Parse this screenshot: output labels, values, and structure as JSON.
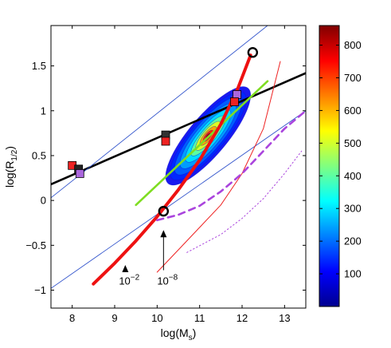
{
  "chart_data": {
    "type": "scatter",
    "xlabel": "log(M",
    "xlabel_sub": "s",
    "xlabel_close": ")",
    "ylabel": "log(R",
    "ylabel_sub": "1/2",
    "ylabel_close": ")",
    "xlim": [
      7.5,
      13.5
    ],
    "ylim": [
      -1.2,
      1.95
    ],
    "xticks": [
      "8",
      "9",
      "10",
      "11",
      "12",
      "13"
    ],
    "yticks": [
      "-1",
      "-0.5",
      "0",
      "0.5",
      "1",
      "1.5"
    ],
    "colorbar": {
      "range": [
        0,
        860
      ],
      "ticks": [
        "100",
        "200",
        "300",
        "400",
        "500",
        "600",
        "700",
        "800"
      ],
      "colors": [
        "#00008f",
        "#0000ff",
        "#0080ff",
        "#00ffff",
        "#80ff80",
        "#ffff00",
        "#ff8000",
        "#ff0000",
        "#800000"
      ]
    },
    "density_contour_center": [
      11.2,
      0.72
    ],
    "series": [
      {
        "kind": "line",
        "color": "#000000",
        "x": [
          7.5,
          13.5
        ],
        "y": [
          0.18,
          1.42
        ]
      },
      {
        "kind": "line",
        "color": "#3355cc",
        "x": [
          7.5,
          12.6
        ],
        "y": [
          0.03,
          1.95
        ]
      },
      {
        "kind": "line",
        "color": "#3355cc",
        "x": [
          7.5,
          13.5
        ],
        "y": [
          -0.98,
          1.0
        ]
      },
      {
        "kind": "line",
        "color": "#7fdd22",
        "x": [
          9.5,
          12.6
        ],
        "y": [
          -0.05,
          1.33
        ]
      },
      {
        "kind": "line",
        "color": "#ee1111",
        "x": [
          8.5,
          9.0,
          9.5,
          10.0,
          10.5,
          11.0,
          11.5,
          11.9,
          12.2
        ],
        "y": [
          -0.93,
          -0.7,
          -0.45,
          -0.18,
          0.12,
          0.45,
          0.85,
          1.25,
          1.62
        ]
      },
      {
        "kind": "line",
        "color": "#ee2222",
        "x": [
          10.0,
          10.5,
          11.0,
          11.5,
          12.0,
          12.5,
          12.9
        ],
        "y": [
          -0.8,
          -0.55,
          -0.3,
          -0.05,
          0.3,
          0.8,
          1.55
        ]
      },
      {
        "kind": "dashed",
        "color": "#aa44dd",
        "x": [
          10.0,
          10.5,
          11.0,
          11.5,
          12.0,
          12.5,
          13.0,
          13.5
        ],
        "y": [
          -0.22,
          -0.16,
          -0.06,
          0.1,
          0.3,
          0.55,
          0.8,
          1.0
        ]
      },
      {
        "kind": "dotted",
        "color": "#aa44dd",
        "x": [
          10.7,
          11.5,
          12.0,
          12.5,
          13.0,
          13.4
        ],
        "y": [
          -0.58,
          -0.38,
          -0.2,
          0.02,
          0.3,
          0.55
        ]
      }
    ],
    "circles": [
      {
        "x": 10.15,
        "y": -0.12
      },
      {
        "x": 12.25,
        "y": 1.65
      }
    ],
    "squares": [
      {
        "x": 8.0,
        "y": 0.39,
        "color": "#ee2222"
      },
      {
        "x": 8.15,
        "y": 0.35,
        "color": "#222222"
      },
      {
        "x": 8.18,
        "y": 0.3,
        "color": "#aa66dd"
      },
      {
        "x": 10.2,
        "y": 0.73,
        "color": "#333333"
      },
      {
        "x": 10.2,
        "y": 0.66,
        "color": "#ee2222"
      },
      {
        "x": 11.88,
        "y": 1.18,
        "color": "#aa66dd"
      },
      {
        "x": 11.82,
        "y": 1.1,
        "color": "#ee2222"
      }
    ],
    "annotations": [
      {
        "base": "10",
        "exp": "−2",
        "x": 9.1,
        "y": -0.92,
        "arrow_to": [
          9.25,
          -0.72
        ]
      },
      {
        "base": "10",
        "exp": "−8",
        "x": 10.0,
        "y": -0.92,
        "arrow_to": [
          10.15,
          -0.33
        ]
      }
    ]
  }
}
